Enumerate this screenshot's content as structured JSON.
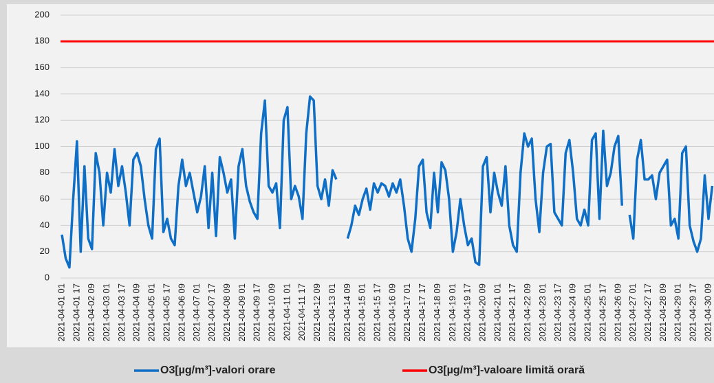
{
  "chart_data": {
    "type": "line",
    "categories": [
      "2021-04-01 01",
      null,
      null,
      null,
      "2021-04-01 17",
      null,
      null,
      null,
      "2021-04-02 09",
      null,
      null,
      null,
      "2021-04-03 01",
      null,
      null,
      null,
      "2021-04-03 17",
      null,
      null,
      null,
      "2021-04-04 09",
      null,
      null,
      null,
      "2021-04-05 01",
      null,
      null,
      null,
      "2021-04-05 17",
      null,
      null,
      null,
      "2021-04-06 09",
      null,
      null,
      null,
      "2021-04-07 01",
      null,
      null,
      null,
      "2021-04-07 17",
      null,
      null,
      null,
      "2021-04-08 09",
      null,
      null,
      null,
      "2021-04-09 01",
      null,
      null,
      null,
      "2021-04-09 17",
      null,
      null,
      null,
      "2021-04-10 09",
      null,
      null,
      null,
      "2021-04-11 01",
      null,
      null,
      null,
      "2021-04-11 17",
      null,
      null,
      null,
      "2021-04-12 09",
      null,
      null,
      null,
      "2021-04-13 01",
      null,
      null,
      null,
      "2021-04-14 09",
      null,
      null,
      null,
      "2021-04-15 01",
      null,
      null,
      null,
      "2021-04-15 17",
      null,
      null,
      null,
      "2021-04-16 09",
      null,
      null,
      null,
      "2021-04-17 01",
      null,
      null,
      null,
      "2021-04-17 17",
      null,
      null,
      null,
      "2021-04-18 09",
      null,
      null,
      null,
      "2021-04-19 01",
      null,
      null,
      null,
      "2021-04-19 17",
      null,
      null,
      null,
      "2021-04-20 09",
      null,
      null,
      null,
      "2021-04-21 01",
      null,
      null,
      null,
      "2021-04-21 17",
      null,
      null,
      null,
      "2021-04-22 09",
      null,
      null,
      null,
      "2021-04-23 01",
      null,
      null,
      null,
      "2021-04-23 17",
      null,
      null,
      null,
      "2021-04-24 09",
      null,
      null,
      null,
      "2021-04-25 01",
      null,
      null,
      null,
      "2021-04-25 17",
      null,
      null,
      null,
      "2021-04-26 09",
      null,
      null,
      null,
      "2021-04-27 01",
      null,
      null,
      null,
      "2021-04-27 17",
      null,
      null,
      null,
      "2021-04-28 09",
      null,
      null,
      null,
      "2021-04-29 01",
      null,
      null,
      null,
      "2021-04-29 17",
      null,
      null,
      null,
      "2021-04-30 09",
      null
    ],
    "series": [
      {
        "name": "O3[µg/m³]-valori orare",
        "color": "#0f6fc6",
        "values": [
          33,
          15,
          8,
          60,
          104,
          20,
          85,
          30,
          22,
          95,
          80,
          40,
          80,
          65,
          98,
          70,
          85,
          65,
          40,
          90,
          95,
          85,
          60,
          40,
          30,
          98,
          106,
          35,
          45,
          30,
          25,
          70,
          90,
          70,
          80,
          65,
          50,
          62,
          85,
          38,
          80,
          32,
          92,
          80,
          65,
          75,
          30,
          85,
          98,
          70,
          58,
          50,
          45,
          110,
          135,
          70,
          65,
          72,
          38,
          120,
          130,
          60,
          70,
          62,
          45,
          110,
          138,
          135,
          70,
          60,
          75,
          55,
          82,
          75,
          null,
          null,
          30,
          40,
          55,
          48,
          60,
          68,
          52,
          72,
          65,
          72,
          70,
          62,
          72,
          65,
          75,
          55,
          30,
          20,
          45,
          85,
          90,
          50,
          38,
          80,
          50,
          88,
          82,
          60,
          20,
          35,
          60,
          40,
          25,
          30,
          12,
          10,
          85,
          92,
          50,
          80,
          65,
          55,
          85,
          40,
          25,
          20,
          80,
          110,
          100,
          106,
          60,
          35,
          80,
          100,
          102,
          50,
          45,
          40,
          95,
          105,
          80,
          45,
          40,
          52,
          40,
          105,
          110,
          45,
          112,
          70,
          80,
          100,
          108,
          55,
          null,
          48,
          30,
          90,
          105,
          75,
          75,
          78,
          60,
          80,
          85,
          90,
          40,
          45,
          30,
          95,
          100,
          40,
          28,
          20,
          30,
          78,
          45,
          70
        ]
      }
    ],
    "reference_lines": [
      {
        "name": "O3[µg/m³]-valoare limită orară",
        "value": 180,
        "color": "#ff0000"
      }
    ],
    "ylim": [
      0,
      200
    ],
    "yticks": [
      0,
      20,
      40,
      60,
      80,
      100,
      120,
      140,
      160,
      180,
      200
    ],
    "grid": true
  }
}
